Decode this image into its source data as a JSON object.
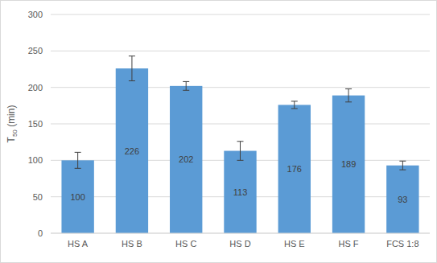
{
  "chart_data": {
    "type": "bar",
    "y_label": "T50 (min)",
    "categories": [
      "HS A",
      "HS B",
      "HS C",
      "HS D",
      "HS E",
      "HS F",
      "FCS 1:8"
    ],
    "values": [
      100,
      226,
      202,
      113,
      176,
      189,
      93
    ],
    "errors": [
      11,
      17,
      6,
      13,
      5,
      9,
      6
    ],
    "color": "#5b9bd5",
    "ylim": [
      0,
      300
    ],
    "yticks": [
      0,
      50,
      100,
      150,
      200,
      250,
      300
    ],
    "grid": true,
    "data_labels": true
  }
}
